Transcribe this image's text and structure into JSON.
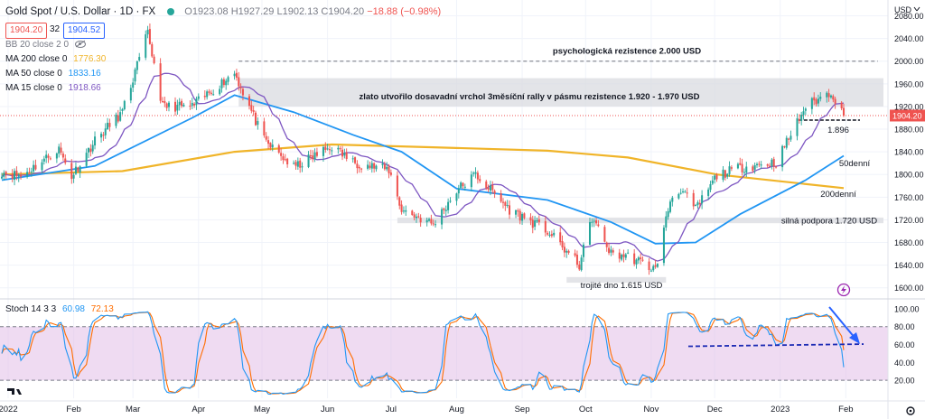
{
  "header": {
    "title": "Gold Spot / U.S. Dollar · 1D · FX",
    "status_color": "#26a69a",
    "open": "O1923.08",
    "high": "H1927.29",
    "low": "L1902.13",
    "close": "C1904.20",
    "change": "−18.88 (−0.98%)"
  },
  "price_boxes": {
    "bid": "1904.20",
    "spread": "32",
    "ask": "1904.52"
  },
  "indicators": {
    "bb": {
      "name": "BB 20 close 2 0",
      "icon": "eye-hidden-icon"
    },
    "ma200": {
      "name": "MA 200 close 0",
      "value": "1776.30",
      "color": "#f0b429"
    },
    "ma50": {
      "name": "MA 50 close 0",
      "value": "1833.16",
      "color": "#2196f3"
    },
    "ma15": {
      "name": "MA 15 close 0",
      "value": "1918.66",
      "color": "#7e57c2"
    }
  },
  "stoch_legend": {
    "name": "Stoch 14 3 3",
    "k": "60.98",
    "d": "72.13",
    "k_color": "#2196f3",
    "d_color": "#ff6d00"
  },
  "currency_label": "USD",
  "last_price_label": "1904.20",
  "annotations": {
    "psych": "psychologická rezistence 2.000 USD",
    "zone": "zlato utvořilo dosavadní vrchol 3měsíční rally v pásmu rezistence 1.920 - 1.970 USD",
    "support": "silná podpora 1.720 USD",
    "bottom": "trojité dno 1.615 USD",
    "level": "1.896",
    "ma50": "50denní",
    "ma200": "200denní"
  },
  "chart_data": {
    "type": "candlestick",
    "price_axis": {
      "range": [
        1590,
        2100
      ],
      "ticks": [
        1600,
        1640,
        1680,
        1720,
        1760,
        1800,
        1840,
        1880,
        1920,
        1960,
        2000,
        2040,
        2080
      ],
      "tick_labels": [
        "1600.00",
        "1640.00",
        "1680.00",
        "1720.00",
        "1760.00",
        "1800.00",
        "1840.00",
        "1880.00",
        "1920.00",
        "1960.00",
        "2000.00",
        "2040.00",
        "2080.00"
      ]
    },
    "stoch_axis": {
      "range": [
        0,
        110
      ],
      "ticks": [
        20,
        40,
        60,
        80,
        100
      ],
      "tick_labels": [
        "20.00",
        "40.00",
        "60.00",
        "80.00",
        "100.00"
      ],
      "bands": [
        20,
        80
      ]
    },
    "x_labels": [
      "2022",
      "Feb",
      "Mar",
      "Apr",
      "May",
      "Jun",
      "Jul",
      "Aug",
      "Sep",
      "Oct",
      "Nov",
      "Dec",
      "2023",
      "Feb"
    ],
    "up_color": "#26a69a",
    "down_color": "#ef5350",
    "close_anchors": [
      {
        "date": "2021-12-29",
        "close": 1805
      },
      {
        "date": "2022-01-07",
        "close": 1797
      },
      {
        "date": "2022-01-25",
        "close": 1845
      },
      {
        "date": "2022-01-31",
        "close": 1797
      },
      {
        "date": "2022-02-11",
        "close": 1860
      },
      {
        "date": "2022-02-24",
        "close": 1910
      },
      {
        "date": "2022-03-08",
        "close": 2050
      },
      {
        "date": "2022-03-15",
        "close": 1920
      },
      {
        "date": "2022-03-29",
        "close": 1920
      },
      {
        "date": "2022-04-18",
        "close": 1980
      },
      {
        "date": "2022-05-02",
        "close": 1860
      },
      {
        "date": "2022-05-16",
        "close": 1812
      },
      {
        "date": "2022-06-03",
        "close": 1850
      },
      {
        "date": "2022-06-13",
        "close": 1822
      },
      {
        "date": "2022-06-30",
        "close": 1808
      },
      {
        "date": "2022-07-06",
        "close": 1738
      },
      {
        "date": "2022-07-21",
        "close": 1712
      },
      {
        "date": "2022-08-01",
        "close": 1772
      },
      {
        "date": "2022-08-10",
        "close": 1800
      },
      {
        "date": "2022-08-26",
        "close": 1738
      },
      {
        "date": "2022-09-13",
        "close": 1700
      },
      {
        "date": "2022-09-28",
        "close": 1640
      },
      {
        "date": "2022-10-04",
        "close": 1724
      },
      {
        "date": "2022-10-13",
        "close": 1660
      },
      {
        "date": "2022-10-21",
        "close": 1656
      },
      {
        "date": "2022-11-03",
        "close": 1632
      },
      {
        "date": "2022-11-10",
        "close": 1755
      },
      {
        "date": "2022-11-15",
        "close": 1775
      },
      {
        "date": "2022-11-22",
        "close": 1738
      },
      {
        "date": "2022-12-02",
        "close": 1798
      },
      {
        "date": "2022-12-13",
        "close": 1812
      },
      {
        "date": "2022-12-30",
        "close": 1822
      },
      {
        "date": "2023-01-13",
        "close": 1920
      },
      {
        "date": "2023-01-25",
        "close": 1946
      },
      {
        "date": "2023-01-31",
        "close": 1904
      }
    ],
    "moving_averages": {
      "ma200": [
        {
          "date": "2021-12-29",
          "value": 1800
        },
        {
          "date": "2022-02-24",
          "value": 1806
        },
        {
          "date": "2022-04-18",
          "value": 1840
        },
        {
          "date": "2022-06-03",
          "value": 1853
        },
        {
          "date": "2022-07-21",
          "value": 1848
        },
        {
          "date": "2022-09-13",
          "value": 1842
        },
        {
          "date": "2022-10-21",
          "value": 1830
        },
        {
          "date": "2022-12-02",
          "value": 1800
        },
        {
          "date": "2023-01-31",
          "value": 1776
        }
      ],
      "ma50": [
        {
          "date": "2021-12-29",
          "value": 1790
        },
        {
          "date": "2022-02-11",
          "value": 1815
        },
        {
          "date": "2022-03-29",
          "value": 1900
        },
        {
          "date": "2022-04-18",
          "value": 1940
        },
        {
          "date": "2022-05-16",
          "value": 1910
        },
        {
          "date": "2022-06-13",
          "value": 1870
        },
        {
          "date": "2022-07-06",
          "value": 1840
        },
        {
          "date": "2022-08-01",
          "value": 1775
        },
        {
          "date": "2022-09-13",
          "value": 1755
        },
        {
          "date": "2022-10-13",
          "value": 1716
        },
        {
          "date": "2022-11-03",
          "value": 1678
        },
        {
          "date": "2022-11-22",
          "value": 1680
        },
        {
          "date": "2022-12-13",
          "value": 1730
        },
        {
          "date": "2023-01-13",
          "value": 1790
        },
        {
          "date": "2023-01-31",
          "value": 1833
        }
      ]
    },
    "levels": {
      "psychological_resistance": 2000,
      "resistance_zone": [
        1920,
        1970
      ],
      "support": 1720,
      "support_band": [
        1714,
        1724
      ],
      "triple_bottom": 1615,
      "triple_bottom_band": [
        1609,
        1619
      ],
      "dashed_level": 1896
    }
  }
}
